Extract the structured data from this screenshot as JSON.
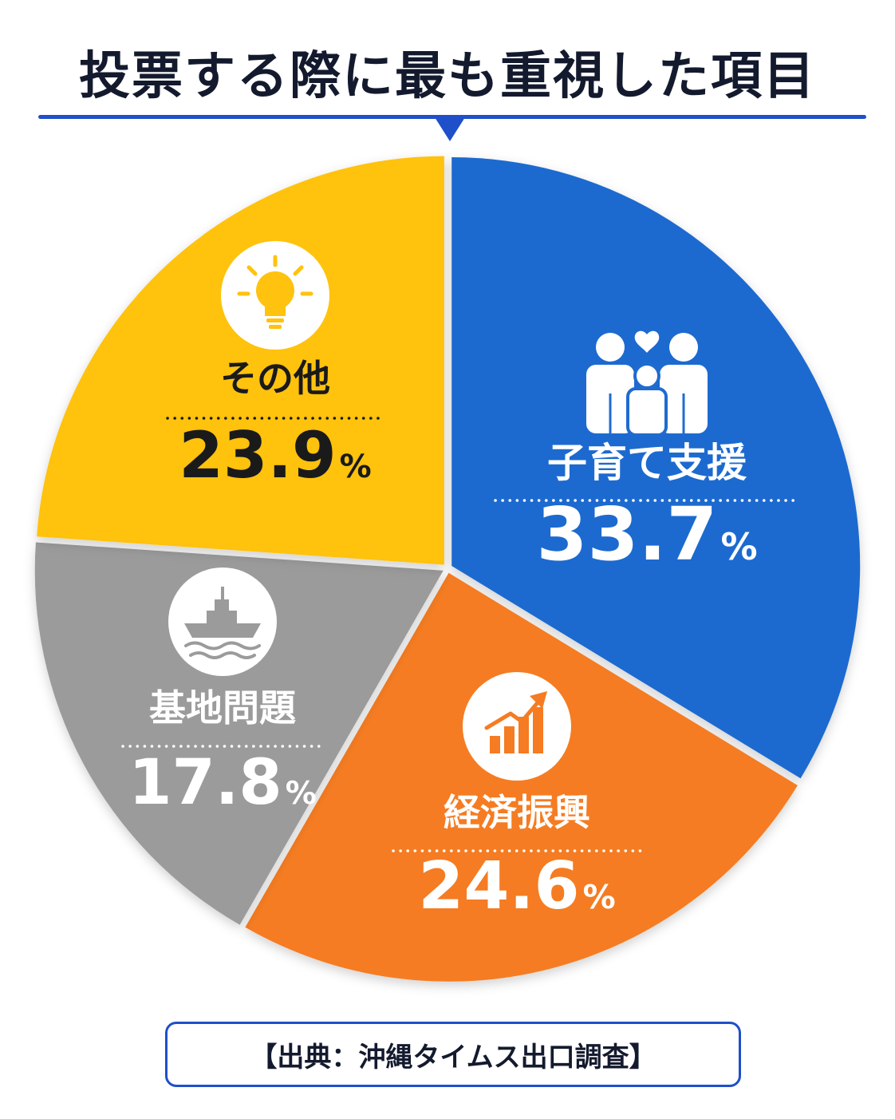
{
  "title": "投票する際に最も重視した項目",
  "source": "【出典：沖縄タイムス出口調査】",
  "chart_data": {
    "type": "pie",
    "title": "投票する際に最も重視した項目",
    "unit": "%",
    "start_category": "子育て支援",
    "direction": "clockwise",
    "slices": [
      {
        "label": "子育て支援",
        "value": 33.7,
        "value_text": "33.7",
        "color": "#1f6bd0",
        "text_color": "#ffffff",
        "icon": "family-icon"
      },
      {
        "label": "経済振興",
        "value": 24.6,
        "value_text": "24.6",
        "color": "#f57c22",
        "text_color": "#ffffff",
        "icon": "growth-chart-icon"
      },
      {
        "label": "基地問題",
        "value": 17.8,
        "value_text": "17.8",
        "color": "#9b9b9b",
        "text_color": "#ffffff",
        "icon": "warship-icon"
      },
      {
        "label": "その他",
        "value": 23.9,
        "value_text": "23.9",
        "color": "#ffc20e",
        "text_color": "#1a1a1a",
        "icon": "lightbulb-icon"
      }
    ]
  }
}
